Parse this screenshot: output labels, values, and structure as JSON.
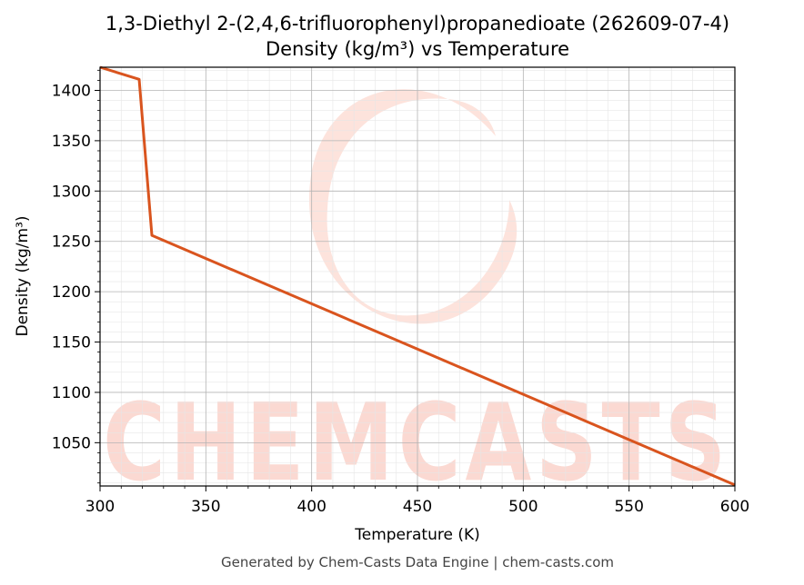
{
  "chart_data": {
    "type": "line",
    "title": "1,3-Diethyl 2-(2,4,6-trifluorophenyl)propanedioate (262609-07-4)",
    "subtitle": "Density (kg/m³) vs Temperature",
    "xlabel": "Temperature (K)",
    "ylabel": "Density (kg/m³)",
    "xlim": [
      300,
      600
    ],
    "ylim": [
      1007,
      1423
    ],
    "x_ticks": [
      300,
      350,
      400,
      450,
      500,
      550,
      600
    ],
    "y_ticks": [
      1050,
      1100,
      1150,
      1200,
      1250,
      1300,
      1350,
      1400
    ],
    "grid": true,
    "series": [
      {
        "color": "#d9541e",
        "x": [
          300,
          318.5,
          324.5,
          600
        ],
        "y": [
          1423,
          1411,
          1256,
          1008
        ]
      }
    ],
    "watermark": "CHEMCASTS",
    "footer": "Generated by Chem-Casts Data Engine | chem-casts.com"
  }
}
